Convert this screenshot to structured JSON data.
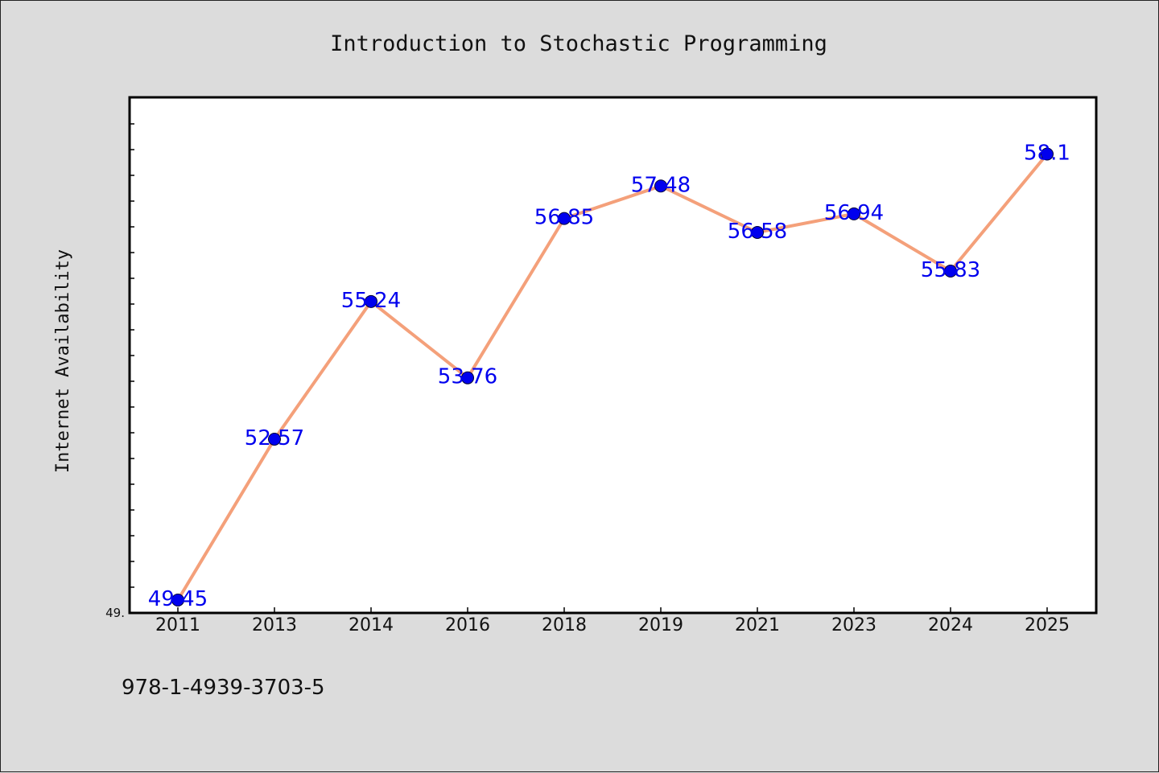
{
  "chart_data": {
    "type": "line",
    "title": "Introduction to Stochastic Programming",
    "ylabel": "Internet Availability",
    "xlabel": "",
    "categories": [
      "2011",
      "2013",
      "2014",
      "2016",
      "2018",
      "2019",
      "2021",
      "2023",
      "2024",
      "2025"
    ],
    "values": [
      49.45,
      52.57,
      55.24,
      53.76,
      56.85,
      57.48,
      56.58,
      56.94,
      55.83,
      58.1
    ],
    "data_labels": [
      "49.45",
      "52.57",
      "55.24",
      "53.76",
      "56.85",
      "57.48",
      "56.58",
      "56.94",
      "55.83",
      "58.1"
    ],
    "ylim": [
      49.2,
      59.2
    ],
    "y_tick_label": "49.",
    "grid": false,
    "legend": "none",
    "colors": {
      "line": "#f4a07a",
      "marker": "#0000ee",
      "label": "#0000ee"
    }
  },
  "footer": {
    "isbn": "978-1-4939-3703-5"
  }
}
